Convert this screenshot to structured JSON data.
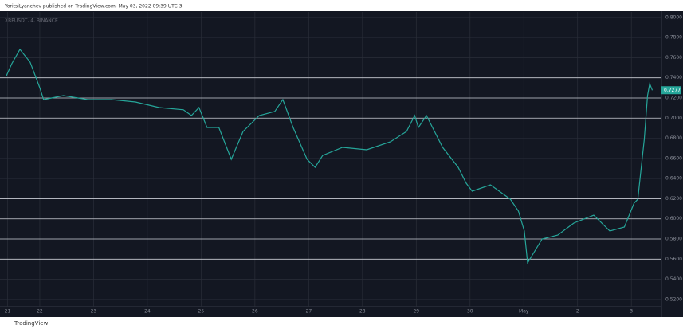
{
  "chart_data": {
    "type": "line",
    "header": "YoritsiLyanchev published on TradingView.com, May 03, 2022 09:39 UTC-3",
    "footer": "TradingView",
    "symbol": "XRPUSDT, 4, BINANCE",
    "x": [
      21.38,
      21.48,
      21.63,
      21.82,
      22.0,
      22.07,
      22.44,
      22.89,
      23.33,
      23.78,
      24.22,
      24.67,
      24.82,
      24.96,
      25.11,
      25.33,
      25.56,
      25.78,
      26.08,
      26.37,
      26.52,
      26.71,
      26.97,
      27.12,
      27.26,
      27.63,
      28.08,
      28.52,
      28.82,
      28.97,
      29.04,
      29.19,
      29.49,
      29.78,
      29.93,
      30.04,
      30.38,
      30.75,
      30.9,
      31.01,
      31.07,
      31.34,
      31.63,
      31.93,
      32.3,
      32.6,
      32.87,
      33.05,
      33.12,
      33.24,
      33.3,
      33.34,
      33.39
    ],
    "values": [
      0.7421,
      0.754,
      0.7683,
      0.7556,
      0.7303,
      0.7184,
      0.7224,
      0.7184,
      0.7184,
      0.716,
      0.7105,
      0.7083,
      0.7026,
      0.7105,
      0.6907,
      0.6907,
      0.6591,
      0.6868,
      0.7026,
      0.7066,
      0.7184,
      0.6907,
      0.6591,
      0.6512,
      0.663,
      0.671,
      0.6686,
      0.6765,
      0.6868,
      0.7026,
      0.6907,
      0.7026,
      0.671,
      0.6512,
      0.6354,
      0.6275,
      0.6338,
      0.6195,
      0.6077,
      0.5879,
      0.5563,
      0.58,
      0.5839,
      0.5958,
      0.6037,
      0.5879,
      0.5919,
      0.6156,
      0.6195,
      0.6789,
      0.7224,
      0.7342,
      0.7277
    ],
    "color": "#26a69a",
    "xlim": [
      21.26,
      33.56
    ],
    "xticks": [
      {
        "value": 21.4,
        "label": "21"
      },
      22,
      23,
      24,
      25,
      26,
      27,
      28,
      29,
      30,
      {
        "value": 31,
        "label": "May"
      },
      {
        "value": 32,
        "label": "2"
      },
      {
        "value": 33,
        "label": "3"
      }
    ],
    "ylim": [
      0.5128,
      0.8054
    ],
    "yticks": [
      {
        "value": 0.52,
        "label": "0.5200"
      },
      {
        "value": 0.54,
        "label": "0.5400"
      },
      {
        "value": 0.56,
        "label": "0.5600"
      },
      {
        "value": 0.58,
        "label": "0.5800"
      },
      {
        "value": 0.6,
        "label": "0.6000"
      },
      {
        "value": 0.62,
        "label": "0.6200"
      },
      {
        "value": 0.64,
        "label": "0.6400"
      },
      {
        "value": 0.66,
        "label": "0.6600"
      },
      {
        "value": 0.68,
        "label": "0.6800"
      },
      {
        "value": 0.7,
        "label": "0.7000"
      },
      {
        "value": 0.72,
        "label": "0.7200"
      },
      {
        "value": 0.74,
        "label": "0.7400"
      },
      {
        "value": 0.76,
        "label": "0.7600"
      },
      {
        "value": 0.78,
        "label": "0.7800"
      },
      {
        "value": 0.8,
        "label": "0.8000"
      }
    ],
    "horizontal_lines": [
      0.74,
      0.72,
      0.7,
      0.62,
      0.6,
      0.58,
      0.56
    ],
    "last_price": {
      "value": 0.7277,
      "label": "0.7277"
    },
    "grid": true
  }
}
